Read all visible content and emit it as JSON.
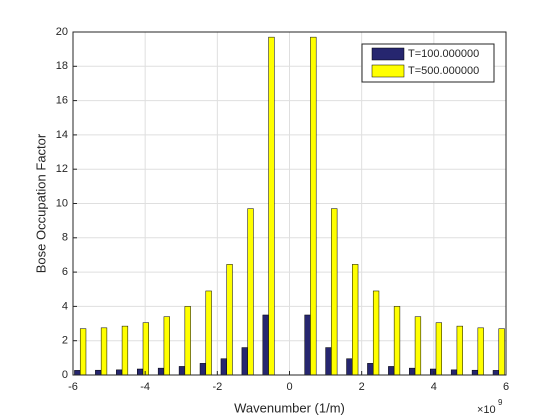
{
  "chart_data": {
    "type": "bar",
    "x_label": "Wavenumber (1/m)",
    "y_label": "Bose Occupation Factor",
    "x_multiplier": {
      "base": "×10",
      "exponent": "9"
    },
    "x": [
      -5.8,
      -5.22,
      -4.64,
      -4.06,
      -3.48,
      -2.9,
      -2.32,
      -1.74,
      -1.16,
      -0.58,
      0.58,
      1.16,
      1.74,
      2.32,
      2.9,
      3.48,
      4.06,
      4.64,
      5.22,
      5.8
    ],
    "series": [
      {
        "name": "T=100.000000",
        "color": "#26266f",
        "values": [
          0.27,
          0.28,
          0.3,
          0.35,
          0.4,
          0.5,
          0.68,
          0.95,
          1.6,
          3.5,
          3.5,
          1.6,
          0.95,
          0.68,
          0.5,
          0.4,
          0.35,
          0.3,
          0.28,
          0.27
        ]
      },
      {
        "name": "T=500.000000",
        "color": "#ffff00",
        "values": [
          2.7,
          2.75,
          2.85,
          3.05,
          3.4,
          4.0,
          4.9,
          6.45,
          9.7,
          19.7,
          19.7,
          9.7,
          6.45,
          4.9,
          4.0,
          3.4,
          3.05,
          2.85,
          2.75,
          2.7
        ]
      }
    ],
    "xlim": [
      -6,
      6
    ],
    "xticks": [
      -6,
      -4,
      -2,
      0,
      2,
      4,
      6
    ],
    "ylim": [
      0,
      20
    ],
    "yticks": [
      0,
      2,
      4,
      6,
      8,
      10,
      12,
      14,
      16,
      18,
      20
    ],
    "grid": true,
    "legend": "northeast"
  }
}
